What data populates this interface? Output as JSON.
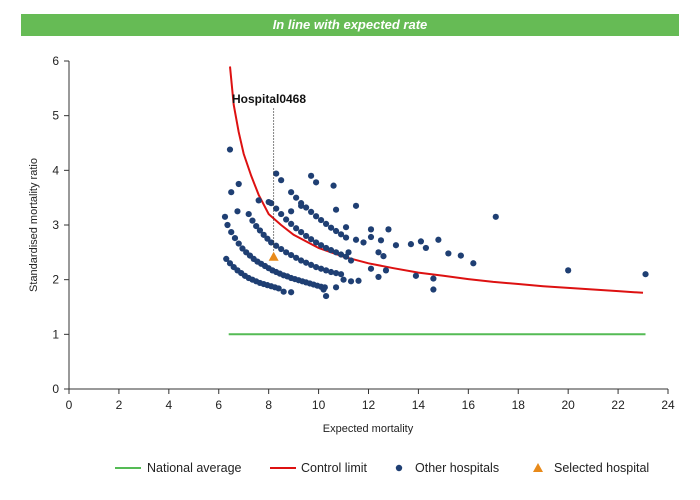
{
  "banner": {
    "text": "In line with expected rate",
    "color": "#66bb55"
  },
  "chart_data": {
    "type": "scatter",
    "title": "",
    "xlabel": "Expected mortality",
    "ylabel": "Standardised mortality ratio",
    "xlim": [
      0,
      24
    ],
    "ylim": [
      0,
      6
    ],
    "xticks": [
      0,
      2,
      4,
      6,
      8,
      10,
      12,
      14,
      16,
      18,
      20,
      22,
      24
    ],
    "yticks": [
      0,
      1,
      2,
      3,
      4,
      5,
      6
    ],
    "grid": false,
    "legend_position": "bottom",
    "annotation": {
      "text": "Hospital0468",
      "x": 8.2,
      "y": 2.42
    },
    "series": [
      {
        "name": "National average",
        "kind": "line",
        "color": "#55bb55",
        "points": [
          [
            6.4,
            1.0
          ],
          [
            23.1,
            1.0
          ]
        ]
      },
      {
        "name": "Control limit",
        "kind": "line",
        "color": "#dd1111",
        "points": [
          [
            6.45,
            5.9
          ],
          [
            6.6,
            5.2
          ],
          [
            6.8,
            4.7
          ],
          [
            7.0,
            4.3
          ],
          [
            7.3,
            3.9
          ],
          [
            7.6,
            3.55
          ],
          [
            8.0,
            3.2
          ],
          [
            8.5,
            3.0
          ],
          [
            9.0,
            2.82
          ],
          [
            10.0,
            2.58
          ],
          [
            11.0,
            2.42
          ],
          [
            12.0,
            2.3
          ],
          [
            13.0,
            2.21
          ],
          [
            14.0,
            2.13
          ],
          [
            15.0,
            2.07
          ],
          [
            16.0,
            2.01
          ],
          [
            17.0,
            1.96
          ],
          [
            18.0,
            1.92
          ],
          [
            19.0,
            1.88
          ],
          [
            20.0,
            1.85
          ],
          [
            21.0,
            1.82
          ],
          [
            22.0,
            1.79
          ],
          [
            23.0,
            1.76
          ]
        ]
      },
      {
        "name": "Other hospitals",
        "kind": "scatter",
        "color": "#1f3f73",
        "points": [
          [
            6.3,
            2.38
          ],
          [
            6.45,
            2.3
          ],
          [
            6.6,
            2.23
          ],
          [
            6.75,
            2.17
          ],
          [
            6.9,
            2.12
          ],
          [
            7.05,
            2.07
          ],
          [
            7.2,
            2.03
          ],
          [
            7.35,
            2.0
          ],
          [
            7.5,
            1.97
          ],
          [
            7.65,
            1.94
          ],
          [
            7.8,
            1.92
          ],
          [
            7.95,
            1.9
          ],
          [
            8.1,
            1.88
          ],
          [
            8.25,
            1.86
          ],
          [
            8.4,
            1.84
          ],
          [
            6.25,
            3.15
          ],
          [
            6.35,
            3.0
          ],
          [
            6.5,
            2.87
          ],
          [
            6.65,
            2.76
          ],
          [
            6.8,
            2.66
          ],
          [
            6.95,
            2.57
          ],
          [
            7.1,
            2.5
          ],
          [
            7.25,
            2.44
          ],
          [
            7.4,
            2.38
          ],
          [
            7.55,
            2.33
          ],
          [
            7.7,
            2.29
          ],
          [
            7.85,
            2.25
          ],
          [
            8.0,
            2.21
          ],
          [
            8.15,
            2.17
          ],
          [
            8.3,
            2.14
          ],
          [
            8.45,
            2.11
          ],
          [
            8.6,
            2.08
          ],
          [
            8.75,
            2.06
          ],
          [
            8.9,
            2.03
          ],
          [
            9.05,
            2.01
          ],
          [
            9.2,
            1.99
          ],
          [
            9.35,
            1.97
          ],
          [
            9.5,
            1.95
          ],
          [
            9.65,
            1.93
          ],
          [
            9.8,
            1.91
          ],
          [
            9.95,
            1.89
          ],
          [
            10.1,
            1.87
          ],
          [
            10.25,
            1.86
          ],
          [
            7.2,
            3.2
          ],
          [
            7.35,
            3.08
          ],
          [
            7.5,
            2.98
          ],
          [
            7.65,
            2.9
          ],
          [
            7.8,
            2.82
          ],
          [
            7.95,
            2.75
          ],
          [
            8.1,
            2.68
          ],
          [
            8.3,
            2.62
          ],
          [
            8.5,
            2.56
          ],
          [
            8.7,
            2.5
          ],
          [
            8.9,
            2.45
          ],
          [
            9.1,
            2.4
          ],
          [
            9.3,
            2.35
          ],
          [
            9.5,
            2.31
          ],
          [
            9.7,
            2.27
          ],
          [
            9.9,
            2.23
          ],
          [
            10.1,
            2.2
          ],
          [
            10.3,
            2.17
          ],
          [
            10.5,
            2.14
          ],
          [
            10.7,
            2.12
          ],
          [
            10.9,
            2.1
          ],
          [
            8.1,
            3.4
          ],
          [
            8.3,
            3.3
          ],
          [
            8.5,
            3.2
          ],
          [
            8.7,
            3.1
          ],
          [
            8.9,
            3.02
          ],
          [
            9.1,
            2.94
          ],
          [
            9.3,
            2.87
          ],
          [
            9.5,
            2.8
          ],
          [
            9.7,
            2.74
          ],
          [
            9.9,
            2.68
          ],
          [
            10.1,
            2.63
          ],
          [
            10.3,
            2.58
          ],
          [
            10.5,
            2.54
          ],
          [
            10.7,
            2.5
          ],
          [
            10.9,
            2.46
          ],
          [
            11.1,
            2.42
          ],
          [
            8.9,
            3.6
          ],
          [
            9.1,
            3.5
          ],
          [
            9.3,
            3.4
          ],
          [
            9.5,
            3.32
          ],
          [
            9.7,
            3.24
          ],
          [
            9.9,
            3.16
          ],
          [
            10.1,
            3.09
          ],
          [
            10.3,
            3.02
          ],
          [
            10.5,
            2.95
          ],
          [
            10.7,
            2.89
          ],
          [
            10.9,
            2.83
          ],
          [
            11.1,
            2.77
          ],
          [
            6.45,
            4.38
          ],
          [
            6.5,
            3.6
          ],
          [
            6.8,
            3.75
          ],
          [
            6.75,
            3.25
          ],
          [
            7.6,
            3.45
          ],
          [
            8.0,
            3.42
          ],
          [
            8.3,
            3.94
          ],
          [
            8.5,
            3.82
          ],
          [
            8.9,
            3.25
          ],
          [
            9.3,
            3.35
          ],
          [
            9.7,
            3.9
          ],
          [
            9.9,
            3.78
          ],
          [
            10.6,
            3.72
          ],
          [
            11.5,
            3.35
          ],
          [
            10.7,
            3.28
          ],
          [
            11.1,
            2.96
          ],
          [
            11.5,
            2.73
          ],
          [
            11.8,
            2.68
          ],
          [
            12.1,
            2.92
          ],
          [
            12.1,
            2.78
          ],
          [
            12.5,
            2.72
          ],
          [
            12.8,
            2.92
          ],
          [
            12.4,
            2.5
          ],
          [
            11.2,
            2.5
          ],
          [
            11.3,
            2.35
          ],
          [
            12.6,
            2.43
          ],
          [
            12.1,
            2.2
          ],
          [
            12.7,
            2.17
          ],
          [
            13.1,
            2.63
          ],
          [
            13.7,
            2.65
          ],
          [
            14.1,
            2.7
          ],
          [
            14.3,
            2.58
          ],
          [
            14.8,
            2.73
          ],
          [
            15.2,
            2.48
          ],
          [
            15.7,
            2.44
          ],
          [
            16.2,
            2.3
          ],
          [
            17.1,
            3.15
          ],
          [
            20.0,
            2.17
          ],
          [
            23.1,
            2.1
          ],
          [
            13.9,
            2.07
          ],
          [
            14.6,
            2.02
          ],
          [
            14.6,
            1.82
          ],
          [
            12.4,
            2.05
          ],
          [
            11.0,
            2.0
          ],
          [
            11.3,
            1.97
          ],
          [
            11.6,
            1.98
          ],
          [
            10.2,
            1.82
          ],
          [
            10.3,
            1.7
          ],
          [
            8.6,
            1.78
          ],
          [
            8.9,
            1.77
          ],
          [
            10.7,
            1.86
          ]
        ]
      },
      {
        "name": "Selected hospital",
        "kind": "triangle",
        "color": "#e88a1a",
        "points": [
          [
            8.2,
            2.42
          ]
        ]
      }
    ]
  }
}
